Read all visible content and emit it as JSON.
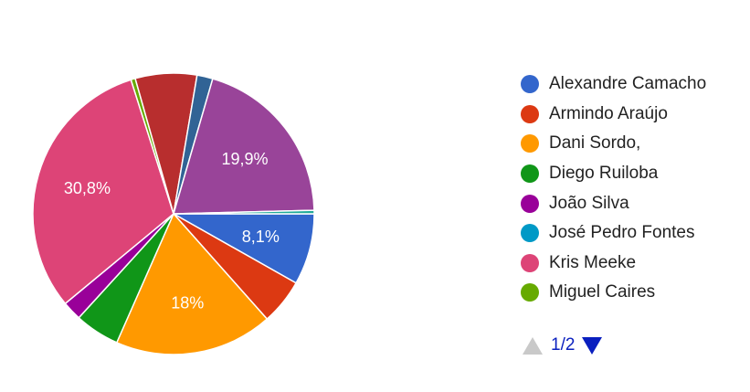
{
  "chart_data": {
    "type": "pie",
    "slices": [
      {
        "label": "Alexandre Camacho",
        "value": 8.1,
        "color": "#3366cc",
        "display": "8,1%"
      },
      {
        "label": "Armindo Araújo",
        "value": 5.2,
        "color": "#dc3912",
        "display": ""
      },
      {
        "label": "Dani Sordo,",
        "value": 18.0,
        "color": "#ff9900",
        "display": "18%"
      },
      {
        "label": "Diego Ruiloba",
        "value": 5.1,
        "color": "#109618",
        "display": ""
      },
      {
        "label": "João Silva",
        "value": 2.2,
        "color": "#990099",
        "display": ""
      },
      {
        "label": "José Pedro Fontes",
        "value": 0.0,
        "color": "#0099c6",
        "display": ""
      },
      {
        "label": "Kris Meeke",
        "value": 30.8,
        "color": "#dd4477",
        "display": "30,8%"
      },
      {
        "label": "Miguel Caires",
        "value": 0.5,
        "color": "#66aa00",
        "display": ""
      },
      {
        "label": "",
        "value": 0.0,
        "color": "#ffffff",
        "display": ""
      },
      {
        "label": "",
        "value": 7.0,
        "color": "#b82e2e",
        "display": ""
      },
      {
        "label": "",
        "value": 1.8,
        "color": "#316395",
        "display": ""
      },
      {
        "label": "",
        "value": 19.9,
        "color": "#994499",
        "display": "19,9%"
      },
      {
        "label": "",
        "value": 0.4,
        "color": "#22aa99",
        "display": ""
      }
    ],
    "legend_position": "right"
  },
  "legend": {
    "items": [
      {
        "label": "Alexandre Camacho",
        "color": "#3366cc"
      },
      {
        "label": "Armindo Araújo",
        "color": "#dc3912"
      },
      {
        "label": "Dani Sordo,",
        "color": "#ff9900"
      },
      {
        "label": "Diego Ruiloba",
        "color": "#109618"
      },
      {
        "label": "João Silva",
        "color": "#990099"
      },
      {
        "label": "José Pedro Fontes",
        "color": "#0099c6"
      },
      {
        "label": "Kris Meeke",
        "color": "#dd4477"
      },
      {
        "label": "Miguel Caires",
        "color": "#66aa00"
      }
    ]
  },
  "pager": {
    "text": "1/2",
    "prev_icon": "triangle-up-icon",
    "next_icon": "triangle-down-icon"
  }
}
